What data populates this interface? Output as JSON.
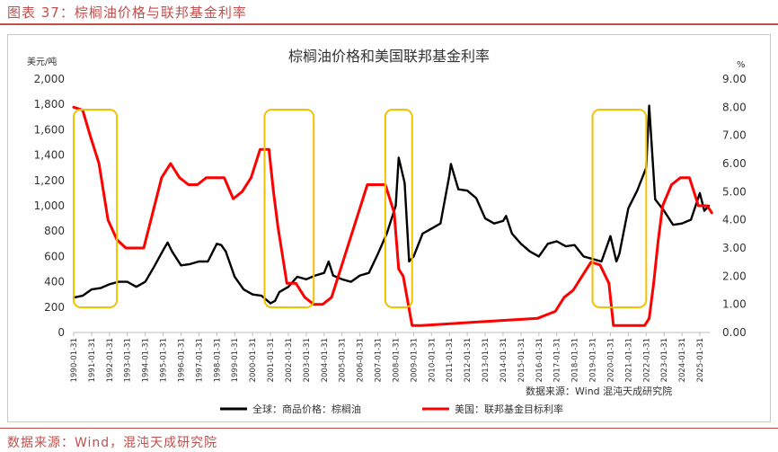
{
  "figure_title": "图表 37：棕榈油价格与联邦基金利率",
  "figure_source": "数据来源：Wind，混沌天成研究院",
  "colors": {
    "accent": "#c0504d",
    "palm": "#000000",
    "fed": "#ff0000",
    "box": "#f5c000"
  },
  "chart_data": {
    "type": "line",
    "title": "棕榈油价格和美国联邦基金利率",
    "y_left_unit": "美元/吨",
    "y_right_unit": "%",
    "y_left_lim": [
      0,
      2000
    ],
    "y_left_ticks": [
      "0",
      "200",
      "400",
      "600",
      "800",
      "1,000",
      "1,200",
      "1,400",
      "1,600",
      "1,800",
      "2,000"
    ],
    "y_right_lim": [
      0,
      9
    ],
    "y_right_ticks": [
      "0.00",
      "1.00",
      "2.00",
      "3.00",
      "4.00",
      "5.00",
      "6.00",
      "7.00",
      "8.00",
      "9.00"
    ],
    "x_ticks": [
      "1990-01-31",
      "1991-01-31",
      "1992-01-31",
      "1993-01-31",
      "1994-01-31",
      "1995-01-31",
      "1996-01-31",
      "1997-01-31",
      "1998-01-31",
      "1999-01-31",
      "2000-01-31",
      "2001-01-31",
      "2002-01-31",
      "2003-01-31",
      "2004-01-31",
      "2005-01-31",
      "2006-01-31",
      "2007-01-31",
      "2008-01-31",
      "2009-01-31",
      "2010-01-31",
      "2011-01-31",
      "2012-01-31",
      "2013-01-31",
      "2014-01-31",
      "2015-01-31",
      "2016-01-31",
      "2017-01-31",
      "2018-01-31",
      "2019-01-31",
      "2020-01-31",
      "2021-01-31",
      "2022-01-31",
      "2023-01-31",
      "2024-01-31",
      "2025-01-31"
    ],
    "in_plot_source": "数据来源：Wind  混沌天成研究院",
    "legend_position": "bottom",
    "series": [
      {
        "name": "全球：商品价格：棕榈油",
        "axis": "left",
        "color": "#000000",
        "x": [
          "1990-01",
          "1990-07",
          "1991-01",
          "1991-07",
          "1992-01",
          "1992-07",
          "1993-01",
          "1993-07",
          "1994-01",
          "1994-07",
          "1995-01",
          "1995-04",
          "1995-07",
          "1996-01",
          "1996-07",
          "1997-01",
          "1997-07",
          "1998-01",
          "1998-04",
          "1998-07",
          "1999-01",
          "1999-07",
          "2000-01",
          "2000-07",
          "2001-01",
          "2001-04",
          "2001-07",
          "2002-01",
          "2002-07",
          "2003-01",
          "2003-07",
          "2004-01",
          "2004-04",
          "2004-07",
          "2005-01",
          "2005-07",
          "2006-01",
          "2006-07",
          "2007-01",
          "2007-07",
          "2008-01",
          "2008-03",
          "2008-07",
          "2008-10",
          "2009-01",
          "2009-07",
          "2010-01",
          "2010-07",
          "2011-01",
          "2011-02",
          "2011-07",
          "2012-01",
          "2012-07",
          "2013-01",
          "2013-07",
          "2014-01",
          "2014-03",
          "2014-07",
          "2015-01",
          "2015-07",
          "2016-01",
          "2016-07",
          "2017-01",
          "2017-07",
          "2018-01",
          "2018-07",
          "2019-01",
          "2019-07",
          "2020-01",
          "2020-05",
          "2020-07",
          "2021-01",
          "2021-07",
          "2022-01",
          "2022-03",
          "2022-07",
          "2023-01",
          "2023-07",
          "2024-01",
          "2024-07",
          "2025-01",
          "2025-04",
          "2025-07"
        ],
        "values": [
          275,
          290,
          340,
          350,
          380,
          400,
          400,
          360,
          400,
          520,
          650,
          710,
          640,
          530,
          540,
          560,
          560,
          700,
          690,
          640,
          440,
          340,
          300,
          290,
          230,
          250,
          320,
          360,
          440,
          420,
          450,
          470,
          560,
          450,
          420,
          400,
          450,
          470,
          620,
          780,
          1000,
          1380,
          1180,
          560,
          600,
          780,
          820,
          860,
          1240,
          1330,
          1130,
          1120,
          1060,
          900,
          860,
          880,
          920,
          780,
          700,
          640,
          600,
          700,
          720,
          680,
          690,
          600,
          580,
          560,
          760,
          560,
          620,
          980,
          1120,
          1300,
          1790,
          1050,
          960,
          850,
          860,
          890,
          1100,
          960,
          1000
        ]
      },
      {
        "name": "美国：联邦基金目标利率",
        "axis": "right",
        "color": "#ff0000",
        "x": [
          "1990-01",
          "1990-07",
          "1990-12",
          "1991-06",
          "1991-12",
          "1992-06",
          "1992-12",
          "1993-06",
          "1993-12",
          "1994-06",
          "1994-12",
          "1995-06",
          "1995-12",
          "1996-06",
          "1996-12",
          "1997-06",
          "1997-12",
          "1998-06",
          "1998-12",
          "1999-06",
          "1999-12",
          "2000-06",
          "2000-12",
          "2001-03",
          "2001-06",
          "2001-12",
          "2002-06",
          "2002-12",
          "2003-06",
          "2003-12",
          "2004-06",
          "2004-12",
          "2005-06",
          "2005-12",
          "2006-06",
          "2006-12",
          "2007-06",
          "2007-12",
          "2008-03",
          "2008-06",
          "2008-12",
          "2009-06",
          "2015-12",
          "2016-12",
          "2017-06",
          "2017-12",
          "2018-06",
          "2018-12",
          "2019-06",
          "2019-12",
          "2020-03",
          "2020-04",
          "2021-12",
          "2022-03",
          "2022-06",
          "2022-09",
          "2022-12",
          "2023-06",
          "2023-12",
          "2024-06",
          "2024-09",
          "2024-12",
          "2025-06",
          "2025-09"
        ],
        "values": [
          8.0,
          7.9,
          7.0,
          6.0,
          4.0,
          3.3,
          3.0,
          3.0,
          3.0,
          4.25,
          5.5,
          6.0,
          5.5,
          5.25,
          5.25,
          5.5,
          5.5,
          5.5,
          4.75,
          5.0,
          5.5,
          6.5,
          6.5,
          5.0,
          3.75,
          1.75,
          1.75,
          1.25,
          1.0,
          1.0,
          1.25,
          2.25,
          3.25,
          4.25,
          5.25,
          5.25,
          5.25,
          4.25,
          2.25,
          2.0,
          0.25,
          0.25,
          0.5,
          0.75,
          1.25,
          1.5,
          2.0,
          2.5,
          2.4,
          1.75,
          0.25,
          0.25,
          0.25,
          0.5,
          1.75,
          3.25,
          4.5,
          5.25,
          5.5,
          5.5,
          5.0,
          4.5,
          4.5,
          4.25
        ]
      }
    ],
    "highlight_boxes": [
      {
        "from": "1990-01",
        "to": "1992-06"
      },
      {
        "from": "2000-09",
        "to": "2003-06"
      },
      {
        "from": "2007-06",
        "to": "2008-12"
      },
      {
        "from": "2019-01",
        "to": "2022-01"
      }
    ]
  }
}
